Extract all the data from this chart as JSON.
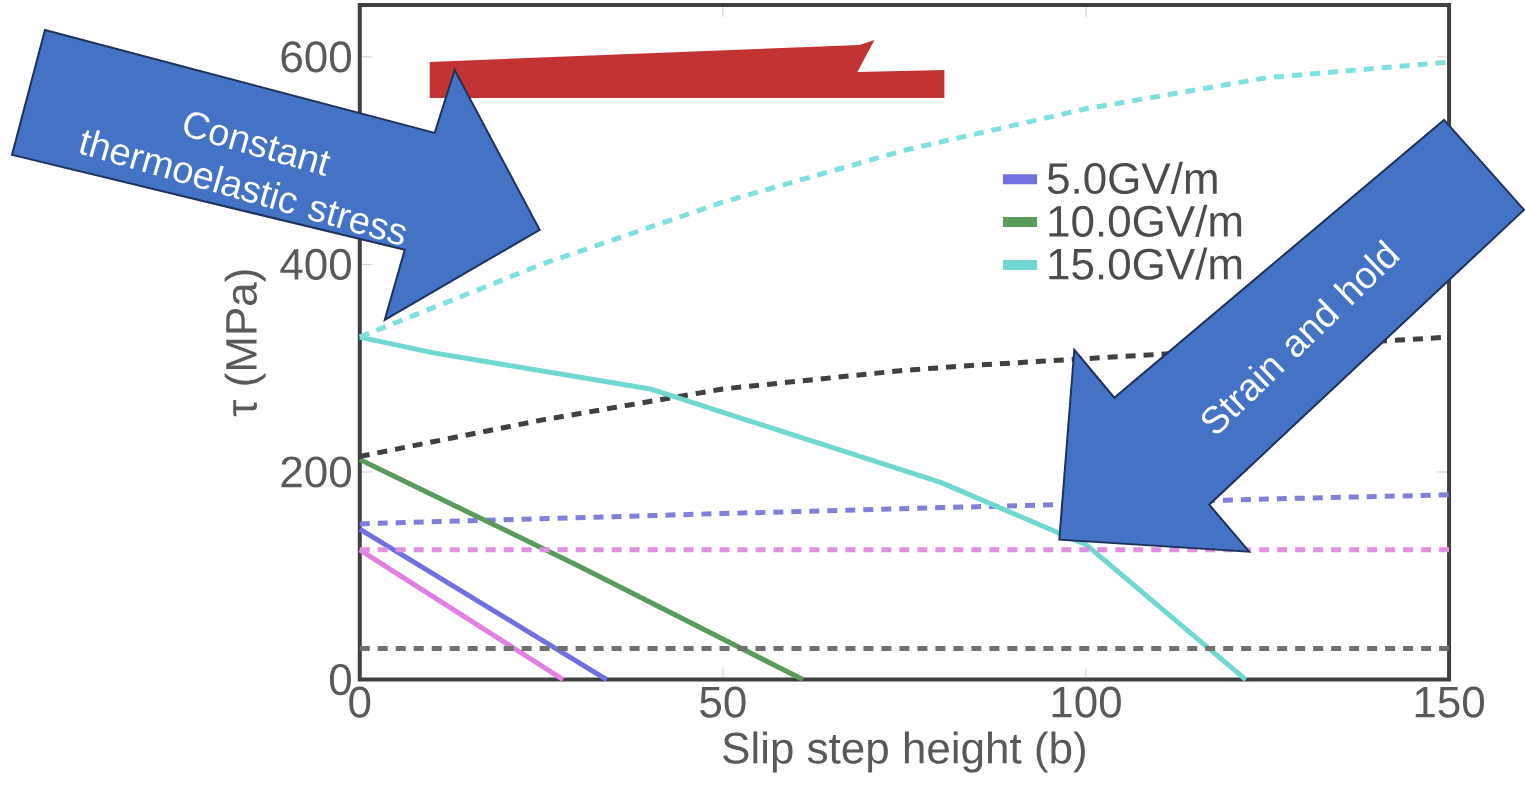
{
  "chart_data": {
    "type": "line",
    "xlabel": "Slip step height (b)",
    "ylabel": "τ (MPa)",
    "xlim": [
      0,
      150
    ],
    "xticks": [
      0,
      50,
      100,
      150
    ],
    "ylim": [
      0,
      650
    ],
    "yticks": [
      0,
      200,
      400,
      600
    ],
    "legend": "top right",
    "annotations": [
      "Constant thermoelastic stress",
      "Strain and hold"
    ],
    "series": [
      {
        "name": "5.0GV/m",
        "color": "#7070e0",
        "line_style": "solid",
        "x": [
          0,
          34
        ],
        "values": [
          145,
          0
        ]
      },
      {
        "color": "#8080d8",
        "line_style": "dashed",
        "x": [
          0,
          50,
          125,
          150
        ],
        "values": [
          150,
          160,
          174,
          178
        ]
      },
      {
        "name": "10.0GV/m",
        "color": "#5a9a5a",
        "line_style": "solid",
        "x": [
          0,
          30,
          61
        ],
        "values": [
          212,
          110,
          0
        ]
      },
      {
        "color": "#404040",
        "line_style": "dashed",
        "x": [
          0,
          25,
          50,
          75,
          85,
          150
        ],
        "values": [
          215,
          250,
          280,
          298,
          303,
          330
        ]
      },
      {
        "name": "15.0GV/m",
        "color": "#70d8d0",
        "line_style": "solid",
        "x": [
          0,
          10,
          40,
          80,
          100,
          122
        ],
        "values": [
          330,
          315,
          280,
          190,
          130,
          0
        ]
      },
      {
        "color": "#80e0e0",
        "line_style": "dashed",
        "x": [
          0,
          25,
          50,
          75,
          100,
          125,
          150
        ],
        "values": [
          330,
          400,
          460,
          510,
          550,
          580,
          595
        ]
      },
      {
        "color": "#e080e0",
        "line_style": "solid",
        "x": [
          0,
          28
        ],
        "values": [
          125,
          0
        ]
      },
      {
        "color": "#e090e0",
        "line_style": "dashed",
        "x": [
          0,
          150
        ],
        "values": [
          125,
          125
        ]
      },
      {
        "color": "#707070",
        "line_style": "dashed",
        "x": [
          0,
          150
        ],
        "values": [
          30,
          30
        ]
      }
    ]
  }
}
